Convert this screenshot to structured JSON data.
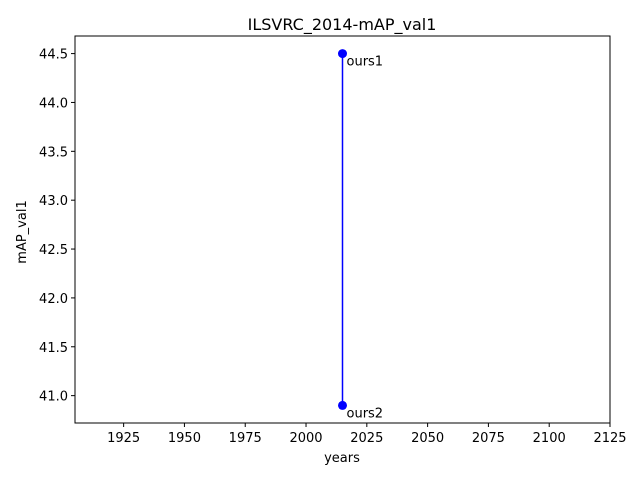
{
  "chart_data": {
    "type": "line",
    "title": "ILSVRC_2014-mAP_val1",
    "xlabel": "years",
    "ylabel": "mAP_val1",
    "xlim": [
      1905,
      2125
    ],
    "ylim": [
      40.72,
      44.68
    ],
    "xticks": [
      1925,
      1950,
      1975,
      2000,
      2025,
      2050,
      2075,
      2100,
      2125
    ],
    "yticks": [
      41.0,
      41.5,
      42.0,
      42.5,
      43.0,
      43.5,
      44.0,
      44.5
    ],
    "ytick_labels": [
      "41.0",
      "41.5",
      "42.0",
      "42.5",
      "43.0",
      "43.5",
      "44.0",
      "44.5"
    ],
    "grid": false,
    "series": [
      {
        "color": "#0000ff",
        "x": [
          2015,
          2015
        ],
        "y": [
          44.5,
          40.9
        ],
        "labels": [
          "ours1",
          "ours2"
        ]
      }
    ]
  }
}
